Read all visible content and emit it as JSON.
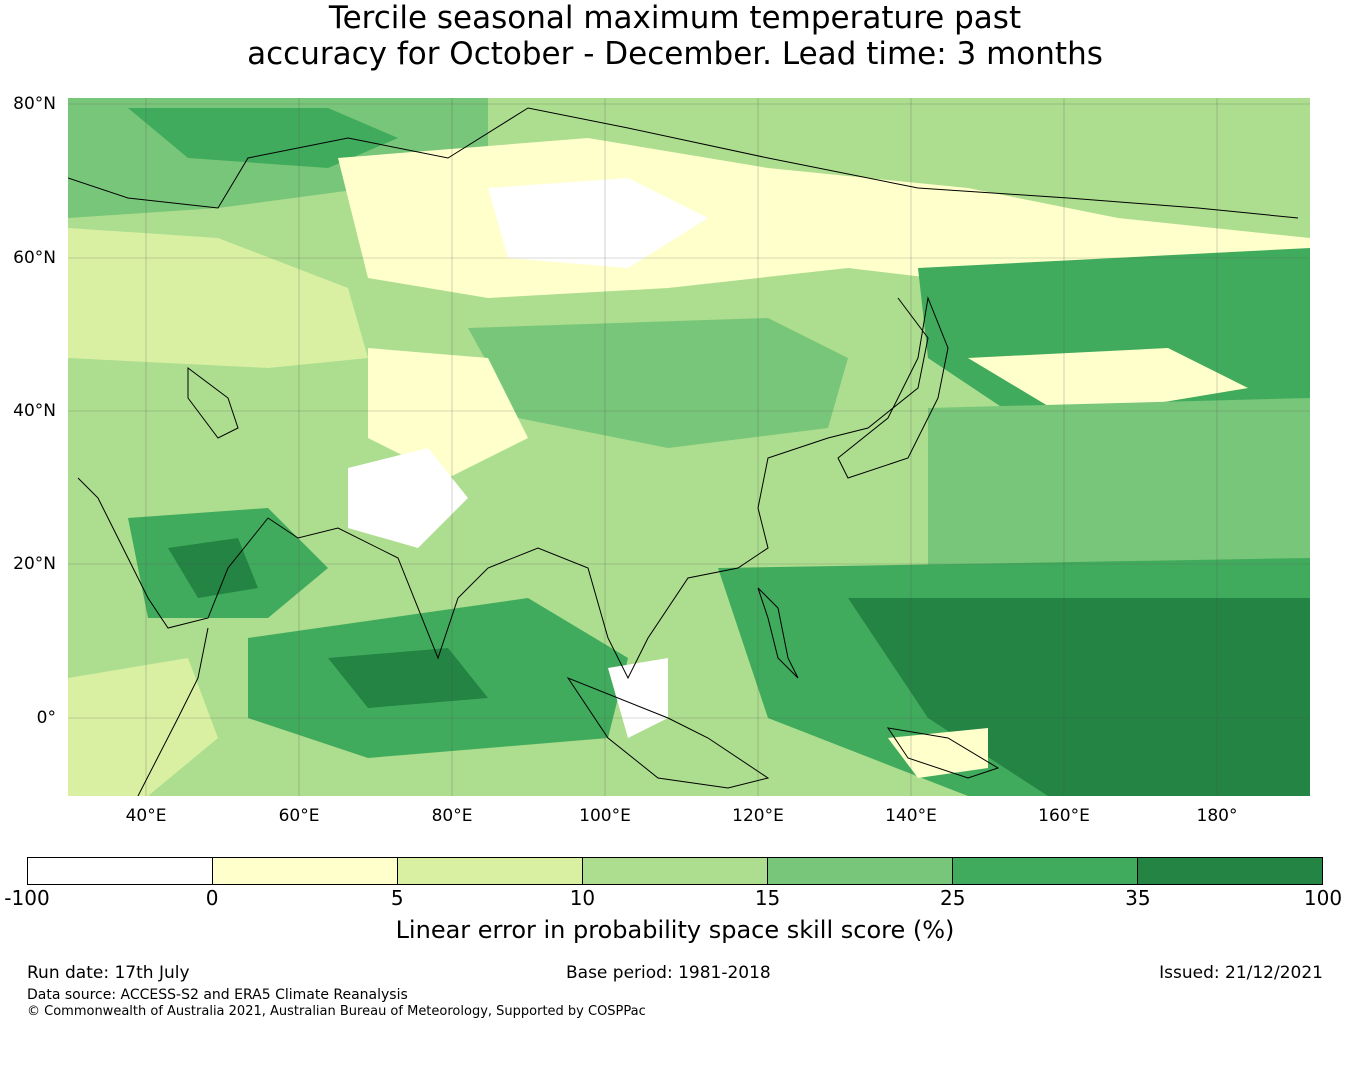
{
  "title": {
    "line1": "Tercile seasonal maximum temperature past",
    "line2": "accuracy for October - December. Lead time: 3 months"
  },
  "map": {
    "lat_labels": [
      "80°N",
      "60°N",
      "40°N",
      "20°N",
      "0°"
    ],
    "lon_labels": [
      "40°E",
      "60°E",
      "80°E",
      "100°E",
      "120°E",
      "140°E",
      "160°E",
      "180°"
    ]
  },
  "colorbar": {
    "colors": [
      "#ffffff",
      "#ffffcc",
      "#d9f0a3",
      "#addd8e",
      "#78c679",
      "#41ab5d",
      "#238443"
    ],
    "ticks": [
      "-100",
      "0",
      "5",
      "10",
      "15",
      "25",
      "35",
      "100"
    ],
    "label": "Linear error in probability space skill score (%)"
  },
  "footer": {
    "run_date": "Run date: 17th July",
    "base_period": "Base period: 1981-2018",
    "issued": "Issued: 21/12/2021",
    "data_source": "Data source: ACCESS-S2 and ERA5 Climate Reanalysis",
    "copyright": "© Commonwealth of Australia 2021, Australian Bureau of Meteorology, Supported by COSPPac"
  }
}
